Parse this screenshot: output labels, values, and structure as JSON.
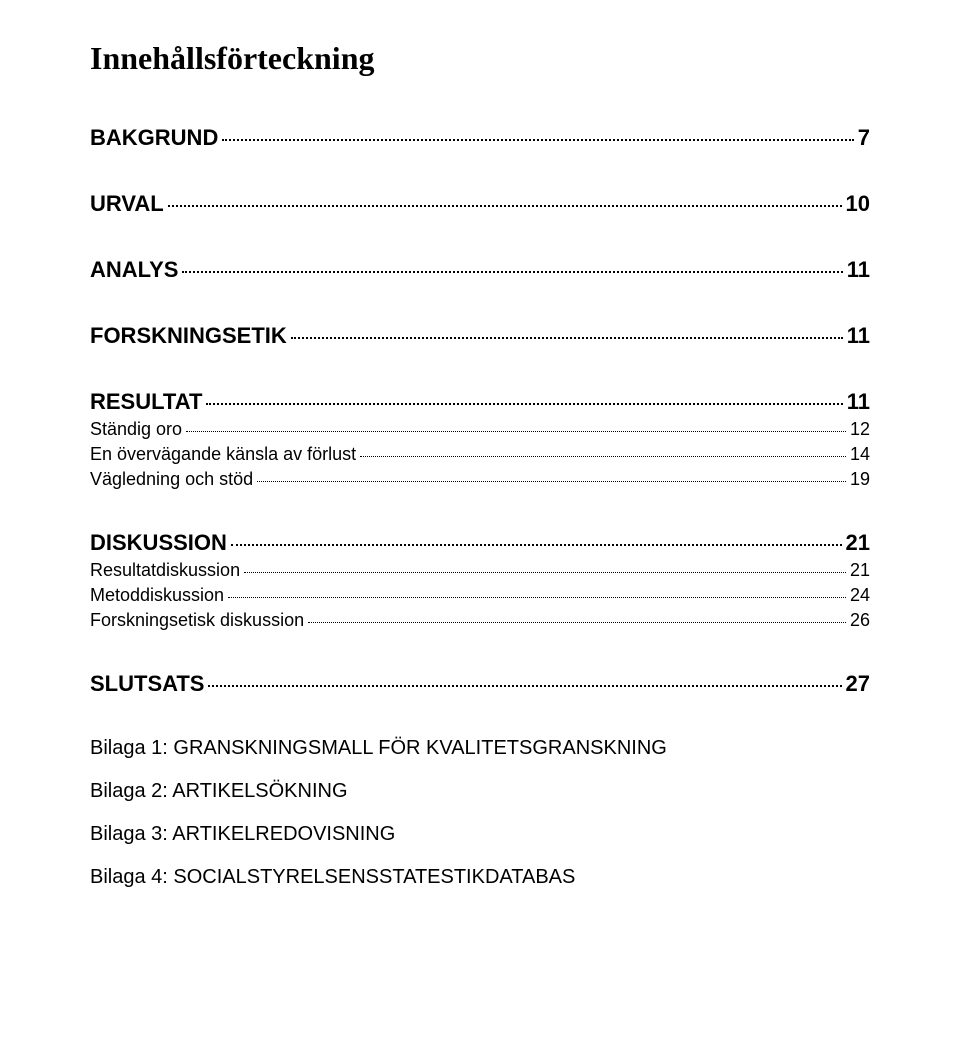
{
  "title": "Innehållsförteckning",
  "sections": [
    {
      "heading": {
        "label": "BAKGRUND",
        "page": "7"
      },
      "subs": []
    },
    {
      "heading": {
        "label": "URVAL",
        "page": "10"
      },
      "subs": []
    },
    {
      "heading": {
        "label": "ANALYS",
        "page": "11"
      },
      "subs": []
    },
    {
      "heading": {
        "label": "FORSKNINGSETIK",
        "page": "11"
      },
      "subs": []
    },
    {
      "heading": {
        "label": "RESULTAT",
        "page": "11"
      },
      "subs": [
        {
          "label": "Ständig oro",
          "page": "12"
        },
        {
          "label": "En övervägande känsla av förlust",
          "page": "14"
        },
        {
          "label": "Vägledning och stöd",
          "page": "19"
        }
      ]
    },
    {
      "heading": {
        "label": "DISKUSSION",
        "page": "21"
      },
      "subs": [
        {
          "label": "Resultatdiskussion",
          "page": "21"
        },
        {
          "label": "Metoddiskussion",
          "page": "24"
        },
        {
          "label": "Forskningsetisk diskussion",
          "page": "26"
        }
      ]
    },
    {
      "heading": {
        "label": "SLUTSATS",
        "page": "27"
      },
      "subs": []
    }
  ],
  "appendices": [
    "Bilaga 1: GRANSKNINGSMALL FÖR KVALITETSGRANSKNING",
    "Bilaga 2: ARTIKELSÖKNING",
    "Bilaga 3: ARTIKELREDOVISNING",
    "Bilaga 4: SOCIALSTYRELSENSSTATESTIKDATABAS"
  ],
  "colors": {
    "background": "#ffffff",
    "text": "#000000"
  },
  "typography": {
    "title_font": "Georgia",
    "body_font": "Arial",
    "title_size_pt": 24,
    "heading_size_pt": 16,
    "sub_size_pt": 13,
    "appendix_size_pt": 15
  }
}
